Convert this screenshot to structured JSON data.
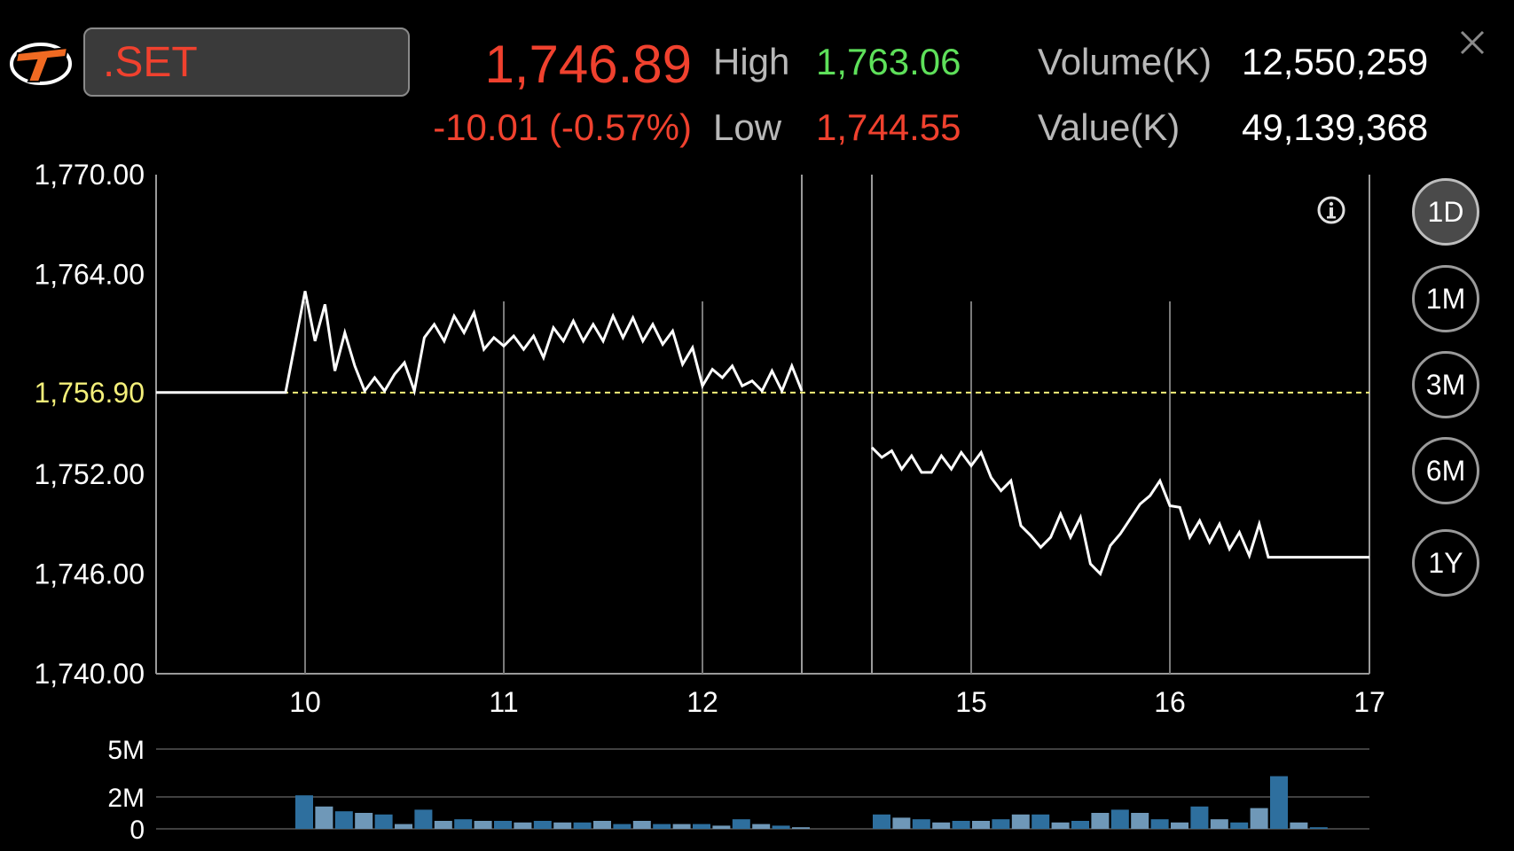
{
  "header": {
    "symbol": ".SET",
    "last_price": "1,746.89",
    "change": "-10.01 (-0.57%)",
    "high_label": "High",
    "high_value": "1,763.06",
    "low_label": "Low",
    "low_value": "1,744.55",
    "volume_label": "Volume(K)",
    "volume_value": "12,550,259",
    "value_label": "Value(K)",
    "value_value": "49,139,368"
  },
  "icons": {
    "logo": "brand-logo",
    "close": "close-icon",
    "info": "info-icon"
  },
  "colors": {
    "down": "#f0412e",
    "up": "#5ee05a",
    "prev_close_line": "#f4f07a",
    "volume_bar_dark": "#2e6f9e",
    "volume_bar_light": "#6f98b8"
  },
  "periods": [
    {
      "label": "1D",
      "active": true
    },
    {
      "label": "1M",
      "active": false
    },
    {
      "label": "3M",
      "active": false
    },
    {
      "label": "6M",
      "active": false
    },
    {
      "label": "1Y",
      "active": false
    }
  ],
  "chart_data": {
    "type": "line",
    "y_ticks": [
      "1,770.00",
      "1,764.00",
      "1,756.90",
      "1,752.00",
      "1,746.00",
      "1,740.00"
    ],
    "ylim": [
      1740,
      1770
    ],
    "reference_line": {
      "value": 1756.9,
      "label": "1,756.90"
    },
    "x_ticks": [
      "10",
      "11",
      "12",
      "15",
      "16",
      "17"
    ],
    "series": [
      {
        "segment": "morning",
        "x": [
          9.3,
          9.95,
          10.0,
          10.05,
          10.1,
          10.15,
          10.2,
          10.25,
          10.3,
          10.35,
          10.4,
          10.45,
          10.5,
          10.55,
          10.6,
          10.65,
          10.7,
          10.75,
          10.8,
          10.85,
          10.9,
          10.95,
          11.0,
          11.05,
          11.1,
          11.15,
          11.2,
          11.25,
          11.3,
          11.35,
          11.4,
          11.45,
          11.5,
          11.55,
          11.6,
          11.65,
          11.7,
          11.75,
          11.8,
          11.85,
          11.9,
          11.95,
          12.0,
          12.05,
          12.1,
          12.15,
          12.2,
          12.25,
          12.3,
          12.35,
          12.4,
          12.45,
          12.5
        ],
        "y": [
          1756.9,
          1756.9,
          1763.0,
          1760.0,
          1762.2,
          1758.2,
          1760.5,
          1758.5,
          1757.0,
          1757.8,
          1757.0,
          1758.0,
          1758.7,
          1757.0,
          1760.2,
          1761.0,
          1760.0,
          1761.5,
          1760.5,
          1761.7,
          1759.5,
          1760.2,
          1759.7,
          1760.3,
          1759.5,
          1760.3,
          1759.0,
          1760.8,
          1760.0,
          1761.2,
          1760.0,
          1761.0,
          1760.0,
          1761.5,
          1760.2,
          1761.4,
          1760.0,
          1761.0,
          1759.8,
          1760.6,
          1758.6,
          1759.6,
          1757.3,
          1758.3,
          1757.8,
          1758.5,
          1757.3,
          1757.6,
          1757.0,
          1758.2,
          1757.0,
          1758.5,
          1757.0
        ]
      },
      {
        "segment": "afternoon",
        "x": [
          14.5,
          14.55,
          14.6,
          14.65,
          14.7,
          14.75,
          14.8,
          14.85,
          14.9,
          14.95,
          15.0,
          15.05,
          15.1,
          15.15,
          15.2,
          15.25,
          15.3,
          15.35,
          15.4,
          15.45,
          15.5,
          15.55,
          15.6,
          15.65,
          15.7,
          15.75,
          15.8,
          15.85,
          15.9,
          15.95,
          16.0,
          16.05,
          16.1,
          16.15,
          16.2,
          16.25,
          16.3,
          16.35,
          16.4,
          16.45,
          16.5,
          17.0
        ],
        "y": [
          1753.6,
          1753.0,
          1753.4,
          1752.3,
          1753.1,
          1752.1,
          1752.1,
          1753.1,
          1752.3,
          1753.3,
          1752.5,
          1753.3,
          1751.8,
          1751.0,
          1751.6,
          1748.9,
          1748.3,
          1747.6,
          1748.2,
          1749.6,
          1748.2,
          1749.4,
          1746.6,
          1746.0,
          1747.7,
          1748.4,
          1749.3,
          1750.2,
          1750.7,
          1751.6,
          1750.1,
          1750.0,
          1748.2,
          1749.2,
          1747.9,
          1749.0,
          1747.5,
          1748.5,
          1747.1,
          1749.0,
          1747.0,
          1747.0
        ]
      }
    ],
    "volume": {
      "y_ticks": [
        "5M",
        "2M",
        "0"
      ],
      "ylim": [
        0,
        5
      ],
      "unit": "M",
      "bars_morning": [
        2.1,
        1.4,
        1.1,
        1.0,
        0.9,
        0.3,
        1.2,
        0.5,
        0.6,
        0.5,
        0.5,
        0.4,
        0.5,
        0.4,
        0.4,
        0.5,
        0.3,
        0.5,
        0.3,
        0.3,
        0.3,
        0.2,
        0.6,
        0.3,
        0.2,
        0.1
      ],
      "bars_afternoon": [
        0.9,
        0.7,
        0.6,
        0.4,
        0.5,
        0.5,
        0.6,
        0.9,
        0.9,
        0.4,
        0.5,
        1.0,
        1.2,
        1.0,
        0.6,
        0.4,
        1.4,
        0.6,
        0.4,
        1.3,
        3.3,
        0.4,
        0.1
      ]
    }
  }
}
